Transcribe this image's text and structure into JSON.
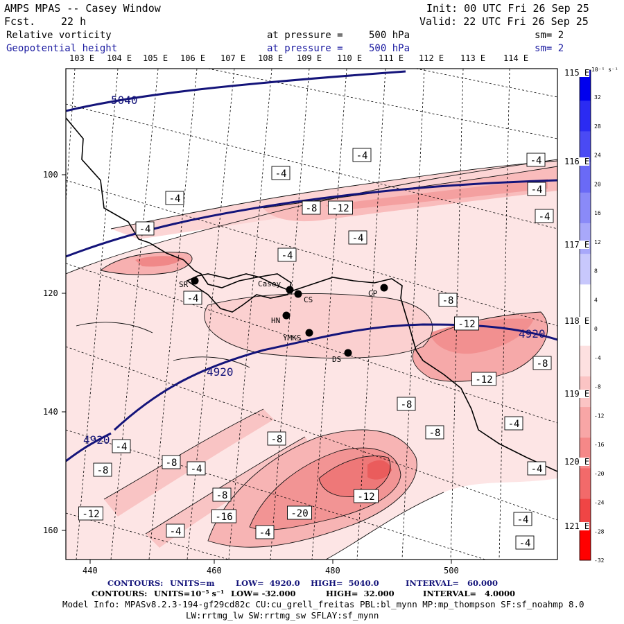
{
  "header": {
    "title": "AMPS MPAS -- Casey Window",
    "fcst_label": "Fcst.",
    "fcst_value": "22 h",
    "init": "Init: 00 UTC Fri 26 Sep 25",
    "valid": "Valid: 22 UTC Fri 26 Sep 25",
    "field1": {
      "name": "Relative vorticity",
      "level_text": "at pressure =",
      "level_value": "500 hPa",
      "sm": "sm= 2"
    },
    "field2": {
      "name": "Geopotential height",
      "level_text": "at pressure =",
      "level_value": "500 hPa",
      "sm": "sm= 2"
    }
  },
  "top_longitudes": [
    "103 E",
    "104 E",
    "105 E",
    "106 E",
    "107 E",
    "108 E",
    "109 E",
    "110 E",
    "111 E",
    "112 E",
    "113 E",
    "114 E"
  ],
  "right_longitudes": [
    "115 E",
    "116 E",
    "117 E",
    "118 E",
    "119 E",
    "120 E",
    "121 E"
  ],
  "x_ticks": [
    "440",
    "460",
    "480",
    "500"
  ],
  "y_ticks": [
    "100",
    "120",
    "140",
    "160"
  ],
  "colorbar": {
    "unit": "10⁻⁵ s⁻¹",
    "labels": [
      "32",
      "28",
      "24",
      "20",
      "16",
      "12",
      "8",
      "4",
      "0",
      "-4",
      "-8",
      "-12",
      "-16",
      "-20",
      "-24",
      "-28",
      "-32"
    ]
  },
  "stations": [
    "SR",
    "Casey",
    "CS",
    "CP",
    "HN",
    "YMKS",
    "DS"
  ],
  "height_contours": [
    "5040",
    "4920",
    "4920",
    "4920"
  ],
  "vort_labels": [
    "-4",
    "-4",
    "-4",
    "-4",
    "-4",
    "-8",
    "-12",
    "-4",
    "-8",
    "-4",
    "-12",
    "-4",
    "-4",
    "-8",
    "-12",
    "-8",
    "-4",
    "-4",
    "-8",
    "-4",
    "-4",
    "-4",
    "-8",
    "-8",
    "-4",
    "-8",
    "-8",
    "-12",
    "-16",
    "-20",
    "-12",
    "-4",
    "-4",
    "-4",
    "-4",
    "-4"
  ],
  "footer": {
    "line1": {
      "label": "CONTOURS:",
      "units": "UNITS=m",
      "low": "LOW=  4920.0",
      "high": "HIGH=  5040.0",
      "interval": "INTERVAL=   60.000"
    },
    "line2": {
      "label": "CONTOURS:",
      "units": "UNITS=10⁻⁵ s⁻¹",
      "low": "LOW= -32.000",
      "high": "HIGH=  32.000",
      "interval": "INTERVAL=   4.0000"
    },
    "model_info": "Model Info: MPASv8.2.3-194-gf29cd82c CU:cu_grell_freitas PBL:bl_mynn MP:mp_thompson SF:sf_noahmp 8.0",
    "model_info2": "LW:rrtmg_lw SW:rrtmg_sw SFLAY:sf_mynn"
  },
  "colors": {
    "height_line": "#14147a",
    "frame": "#000000",
    "positive_max": "#0000ee",
    "negative_max": "#ff0000"
  }
}
